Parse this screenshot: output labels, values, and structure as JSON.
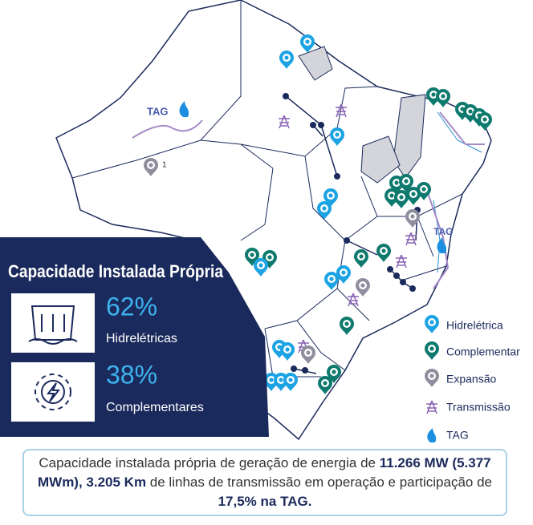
{
  "map_labels": {
    "tag_north": "TAG",
    "tag_east": "TAG",
    "expansion_number": "1"
  },
  "panel": {
    "title": "Capacidade Instalada Própria",
    "items": [
      {
        "value": "62%",
        "label": "Hidrelétricas"
      },
      {
        "value": "38%",
        "label": "Complementares"
      }
    ]
  },
  "legend": [
    "Hidrelétrica",
    "Complementar",
    "Expansão",
    "Transmissão",
    "TAG"
  ],
  "footer": {
    "parts": [
      {
        "text": "Capacidade instalada própria de geração de energia de ",
        "bold": false
      },
      {
        "text": "11.266 MW (5.377 MWm), 3.205 Km",
        "bold": true
      },
      {
        "text": " de linhas de transmissão em operação e participação de ",
        "bold": false
      },
      {
        "text": "17,5% na TAG.",
        "bold": true
      }
    ]
  }
}
